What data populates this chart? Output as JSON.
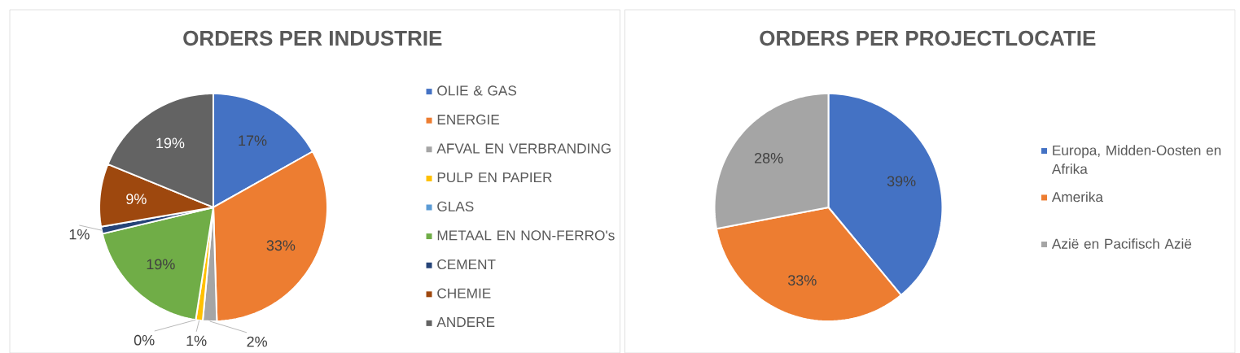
{
  "chart_data": [
    {
      "type": "pie",
      "title": "ORDERS PER INDUSTRIE",
      "legend": "right",
      "categories": [
        "OLIE & GAS",
        "ENERGIE",
        "AFVAL EN VERBRANDING",
        "PULP EN PAPIER",
        "GLAS",
        "METAAL EN NON-FERRO's",
        "CEMENT",
        "CHEMIE",
        "ANDERE"
      ],
      "values": [
        17,
        33,
        2,
        1,
        0,
        19,
        1,
        9,
        19
      ],
      "value_labels": [
        "17%",
        "33%",
        "2%",
        "1%",
        "0%",
        "19%",
        "1%",
        "9%",
        "19%"
      ],
      "colors": [
        "#4472c4",
        "#ed7d31",
        "#a5a5a5",
        "#ffc000",
        "#5b9bd5",
        "#70ad47",
        "#264478",
        "#9e480e",
        "#636363"
      ]
    },
    {
      "type": "pie",
      "title": "ORDERS PER PROJECTLOCATIE",
      "legend": "right",
      "categories": [
        "Europa, Midden-Oosten en Afrika",
        "Amerika",
        "Azië en Pacifisch Azië"
      ],
      "values": [
        39,
        33,
        28
      ],
      "value_labels": [
        "39%",
        "33%",
        "28%"
      ],
      "colors": [
        "#4472c4",
        "#ed7d31",
        "#a5a5a5"
      ]
    }
  ]
}
